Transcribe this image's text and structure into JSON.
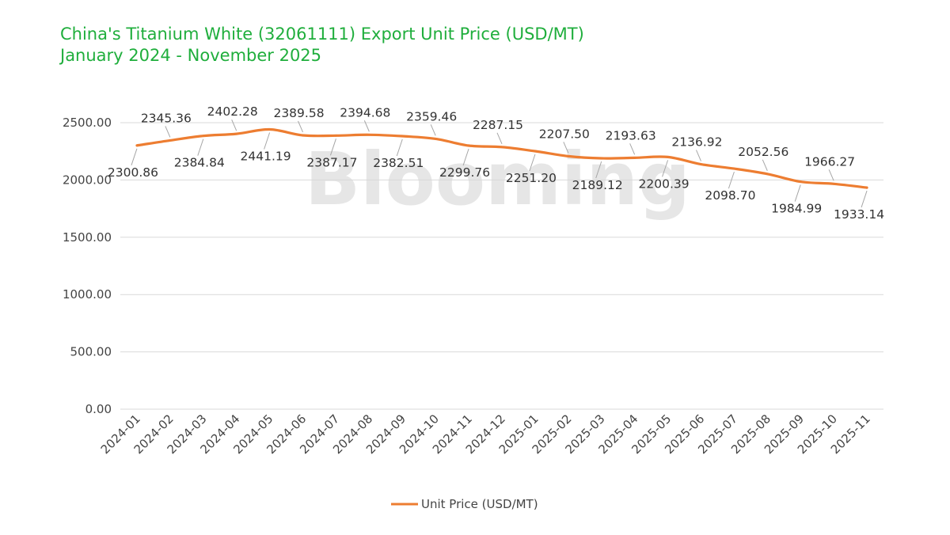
{
  "title": {
    "line1": "China's Titanium White (32061111) Export Unit Price (USD/MT)",
    "line2": "January 2024 - November 2025"
  },
  "watermark": "Blooming",
  "colors": {
    "title": "#1fae3c",
    "series": "#ed7d31",
    "grid": "#d9d9d9",
    "text": "#444444"
  },
  "chart_data": {
    "type": "line",
    "title": "China's Titanium White (32061111) Export Unit Price (USD/MT)",
    "subtitle": "January 2024 - November 2025",
    "xlabel": "",
    "ylabel": "",
    "ylim": [
      0,
      2500
    ],
    "yticks": [
      "0.00",
      "500.00",
      "1000.00",
      "1500.00",
      "2000.00",
      "2500.00"
    ],
    "grid": "horizontal",
    "legend_position": "bottom",
    "x": [
      "2024-01",
      "2024-02",
      "2024-03",
      "2024-04",
      "2024-05",
      "2024-06",
      "2024-07",
      "2024-08",
      "2024-09",
      "2024-10",
      "2024-11",
      "2024-12",
      "2025-01",
      "2025-02",
      "2025-03",
      "2025-04",
      "2025-05",
      "2025-06",
      "2025-07",
      "2025-08",
      "2025-09",
      "2025-10",
      "2025-11"
    ],
    "series": [
      {
        "name": "Unit Price (USD/MT)",
        "values": [
          2300.86,
          2345.36,
          2384.84,
          2402.28,
          2441.19,
          2389.58,
          2387.17,
          2394.68,
          2382.51,
          2359.46,
          2299.76,
          2287.15,
          2251.2,
          2207.5,
          2189.12,
          2193.63,
          2200.39,
          2136.92,
          2098.7,
          2052.56,
          1984.99,
          1966.27,
          1933.14
        ],
        "labels": [
          "2300.86",
          "2345.36",
          "2384.84",
          "2402.28",
          "2441.19",
          "2389.58",
          "2387.17",
          "2394.68",
          "2382.51",
          "2359.46",
          "2299.76",
          "2287.15",
          "2251.20",
          "2207.50",
          "2189.12",
          "2193.63",
          "2200.39",
          "2136.92",
          "2098.70",
          "2052.56",
          "1984.99",
          "1966.27",
          "1933.14"
        ]
      }
    ]
  }
}
